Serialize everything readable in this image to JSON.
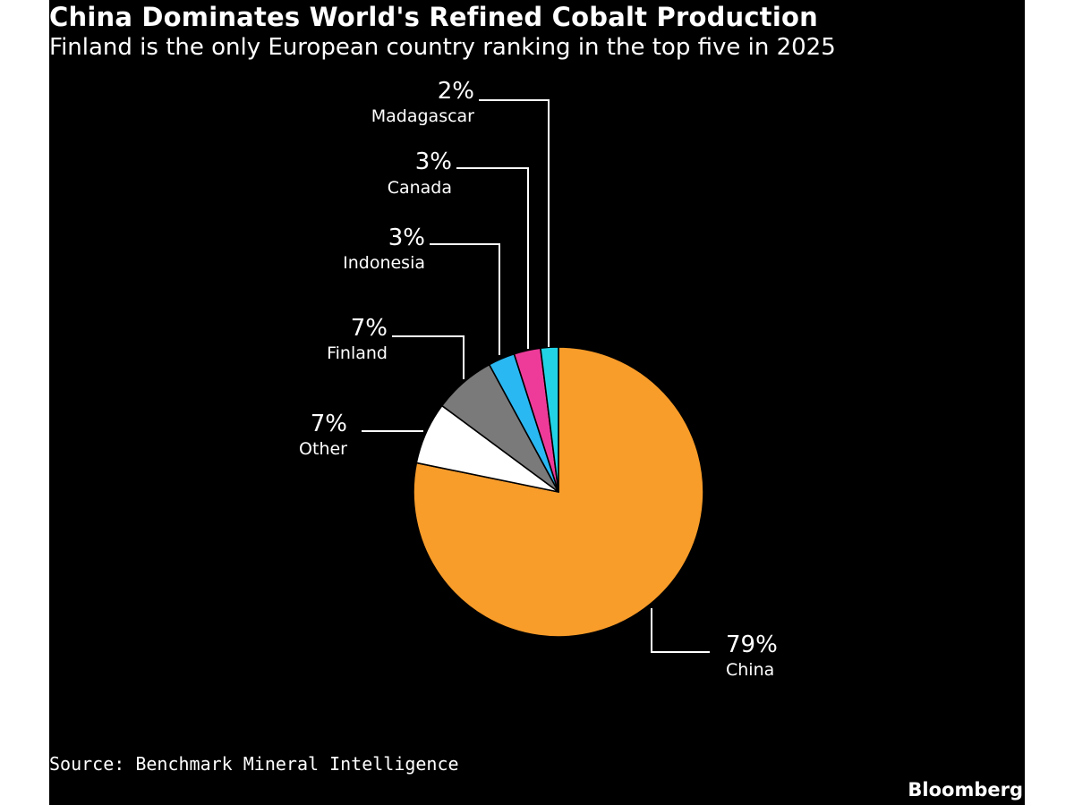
{
  "header": {
    "title": "China Dominates World's Refined Cobalt Production",
    "subtitle": "Finland is the only European country ranking in the top five in 2025"
  },
  "footer": {
    "source": "Source: Benchmark Mineral Intelligence",
    "brand": "Bloomberg"
  },
  "chart_data": {
    "type": "pie",
    "title": "China Dominates World's Refined Cobalt Production",
    "subtitle": "Finland is the only European country ranking in the top five in 2025",
    "slices": [
      {
        "label": "China",
        "value": 79,
        "value_label": "79%",
        "color": "#f89c2a"
      },
      {
        "label": "Other",
        "value": 7,
        "value_label": "7%",
        "color": "#ffffff"
      },
      {
        "label": "Finland",
        "value": 7,
        "value_label": "7%",
        "color": "#7a7a7a"
      },
      {
        "label": "Indonesia",
        "value": 3,
        "value_label": "3%",
        "color": "#2ab8f3"
      },
      {
        "label": "Canada",
        "value": 3,
        "value_label": "3%",
        "color": "#ee3b9a"
      },
      {
        "label": "Madagascar",
        "value": 2,
        "value_label": "2%",
        "color": "#22d3e6"
      }
    ],
    "start_angle": "12 o'clock",
    "direction": "clockwise",
    "legend": "none (direct labels)"
  }
}
